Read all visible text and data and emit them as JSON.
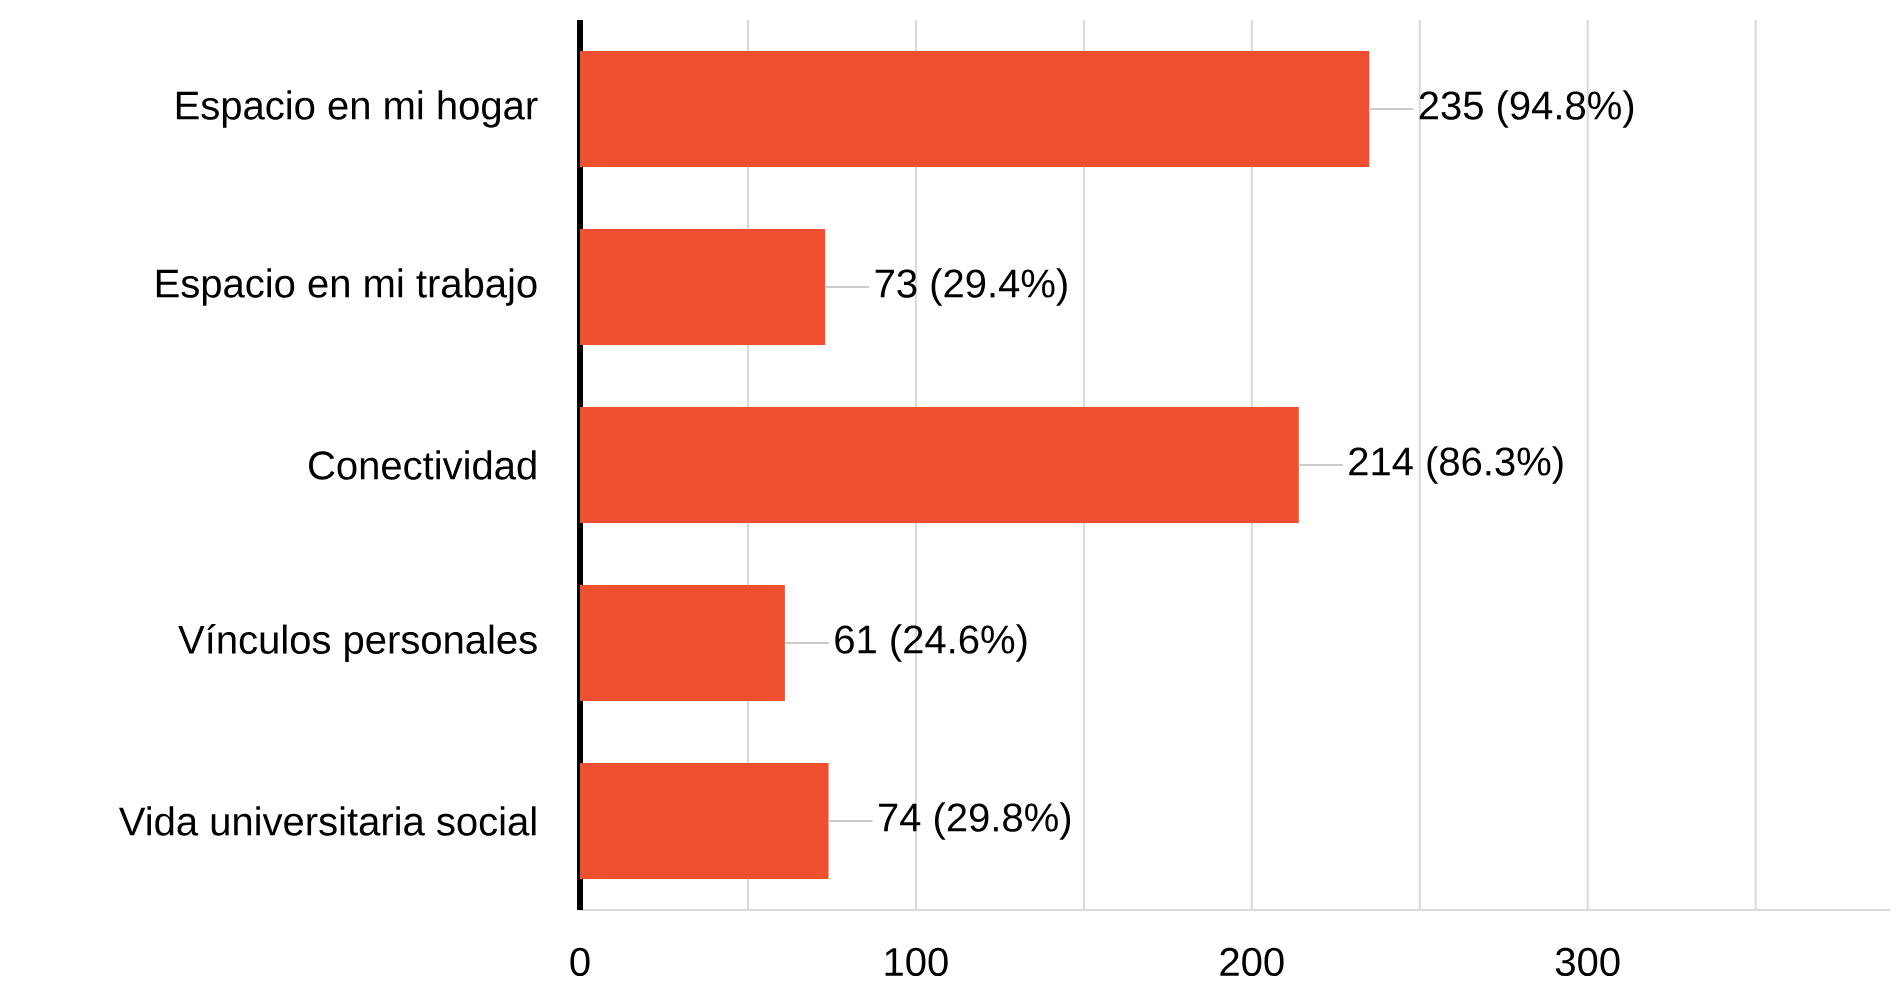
{
  "chart_data": {
    "type": "bar",
    "orientation": "horizontal",
    "categories": [
      "Espacio en mi hogar",
      "Espacio en mi trabajo",
      "Conectividad",
      "Vínculos personales",
      "Vida universitaria social"
    ],
    "values": [
      235,
      73,
      214,
      61,
      74
    ],
    "value_labels": [
      "235 (94.8%)",
      "73 (29.4%)",
      "214 (86.3%)",
      "61 (24.6%)",
      "74 (29.8%)"
    ],
    "color": "#ee5030",
    "xlim": [
      0,
      390
    ],
    "xticks": [
      0,
      {
        "value": 50,
        "label": null
      },
      100,
      {
        "value": 150,
        "label": null
      },
      200,
      {
        "value": 250,
        "label": null
      },
      300,
      {
        "value": 350,
        "label": null
      }
    ],
    "grid": "x"
  }
}
